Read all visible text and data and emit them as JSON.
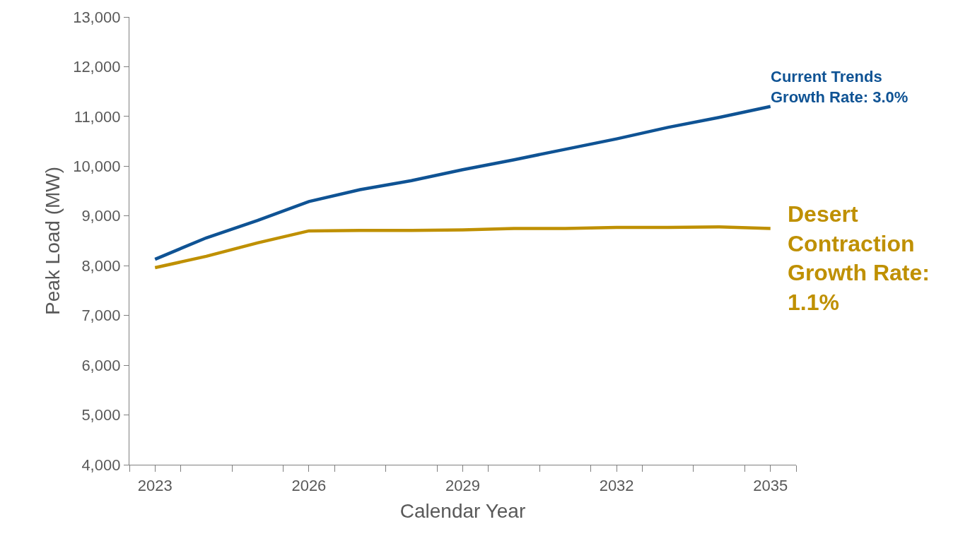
{
  "chart_data": {
    "type": "line",
    "xlabel": "Calendar Year",
    "ylabel": "Peak Load (MW)",
    "x": [
      2023,
      2024,
      2025,
      2026,
      2027,
      2028,
      2029,
      2030,
      2031,
      2032,
      2033,
      2034,
      2035
    ],
    "series": [
      {
        "color": "#0f5394",
        "values": [
          8130,
          8560,
          8910,
          9290,
          9530,
          9710,
          9930,
          10130,
          10340,
          10550,
          10780,
          10980,
          11200
        ]
      },
      {
        "color": "#bf9000",
        "values": [
          7960,
          8190,
          8460,
          8700,
          8710,
          8710,
          8720,
          8750,
          8750,
          8770,
          8770,
          8780,
          8750
        ]
      }
    ],
    "annotations": [
      {
        "text": "Current Trends\nGrowth Rate: 3.0%",
        "x": 2035,
        "y": 11200
      },
      {
        "text": "Desert\nContraction\nGrowth Rate:\n1.1%",
        "x": 2035,
        "y": 8750
      }
    ],
    "xlim": [
      2022.5,
      2035.5
    ],
    "xticks": [
      {
        "value": 2022.5,
        "label": null
      },
      {
        "value": 2023.5,
        "label": null
      },
      {
        "value": 2024.5,
        "label": null
      },
      {
        "value": 2025.5,
        "label": null
      },
      {
        "value": 2026.5,
        "label": null
      },
      {
        "value": 2027.5,
        "label": null
      },
      {
        "value": 2028.5,
        "label": null
      },
      {
        "value": 2029.5,
        "label": null
      },
      {
        "value": 2030.5,
        "label": null
      },
      {
        "value": 2031.5,
        "label": null
      },
      {
        "value": 2032.5,
        "label": null
      },
      {
        "value": 2033.5,
        "label": null
      },
      {
        "value": 2034.5,
        "label": null
      },
      {
        "value": 2035.5,
        "label": null
      },
      {
        "value": 2023,
        "label": "2023"
      },
      {
        "value": 2026,
        "label": "2026"
      },
      {
        "value": 2029,
        "label": "2029"
      },
      {
        "value": 2032,
        "label": "2032"
      },
      {
        "value": 2035,
        "label": "2035"
      }
    ],
    "ylim": [
      4000,
      13000
    ],
    "yticks": [
      {
        "value": 4000,
        "label": "4,000"
      },
      {
        "value": 5000,
        "label": "5,000"
      },
      {
        "value": 6000,
        "label": "6,000"
      },
      {
        "value": 7000,
        "label": "7,000"
      },
      {
        "value": 8000,
        "label": "8,000"
      },
      {
        "value": 9000,
        "label": "9,000"
      },
      {
        "value": 10000,
        "label": "10,000"
      },
      {
        "value": 11000,
        "label": "11,000"
      },
      {
        "value": 12000,
        "label": "12,000"
      },
      {
        "value": 13000,
        "label": "13,000"
      }
    ],
    "marker": "none",
    "line_style": "solid"
  }
}
